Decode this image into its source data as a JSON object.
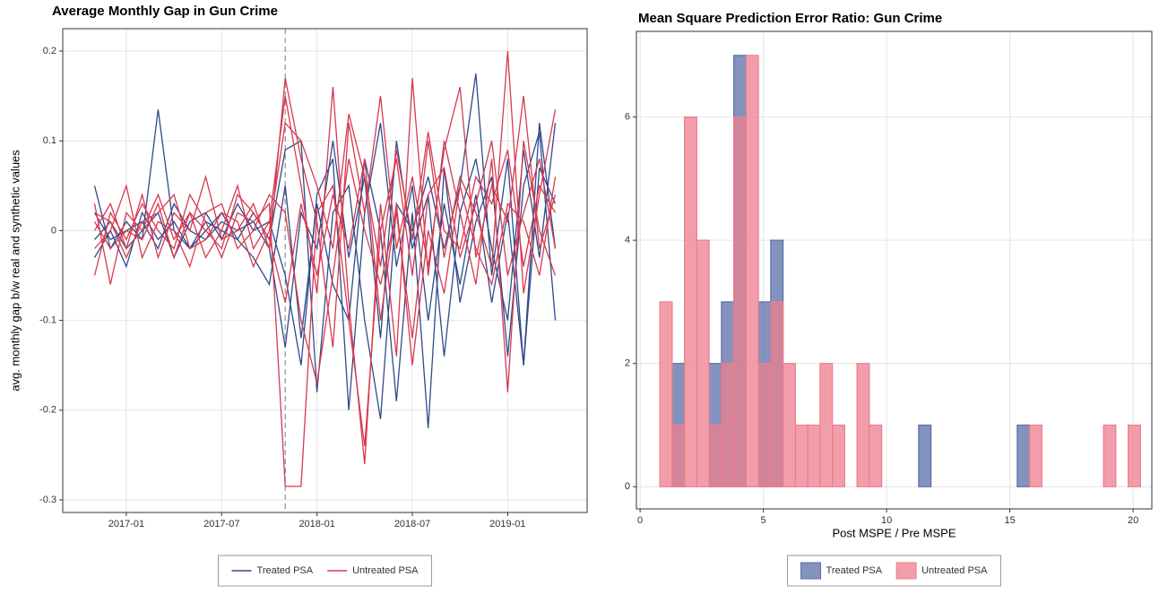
{
  "chart_data": [
    {
      "type": "line",
      "title": "Average Monthly Gap in Gun Crime",
      "y_label": "avg. monthly gap b/w real and synthetic values",
      "x": [
        "2016-11",
        "2016-12",
        "2017-01",
        "2017-02",
        "2017-03",
        "2017-04",
        "2017-05",
        "2017-06",
        "2017-07",
        "2017-08",
        "2017-09",
        "2017-10",
        "2017-11",
        "2017-12",
        "2018-01",
        "2018-02",
        "2018-03",
        "2018-04",
        "2018-05",
        "2018-06",
        "2018-07",
        "2018-08",
        "2018-09",
        "2018-10",
        "2018-11",
        "2018-12",
        "2019-01",
        "2019-02",
        "2019-03",
        "2019-04"
      ],
      "xlim": [
        "2016-09",
        "2019-06"
      ],
      "xticks": [
        "2017-01",
        "2017-07",
        "2018-01",
        "2018-07",
        "2019-01"
      ],
      "ylim": [
        -0.314,
        0.225
      ],
      "yticks": [
        -0.3,
        -0.2,
        -0.1,
        0.0,
        0.1,
        0.2
      ],
      "vline": "2017-11",
      "grid": true,
      "legend": "bottom",
      "series": [
        {
          "name": "Treated PSA",
          "color": "#2f4a8c",
          "values": [
            0.05,
            -0.02,
            0.01,
            -0.01,
            0.135,
            0.0,
            -0.02,
            0.01,
            0.0,
            -0.01,
            0.02,
            -0.01,
            0.09,
            0.1,
            -0.18,
            0.02,
            0.05,
            -0.1,
            -0.21,
            0.03,
            0.0,
            0.06,
            -0.02,
            0.05,
            0.175,
            -0.05,
            0.08,
            -0.15,
            0.12,
            -0.02
          ]
        },
        {
          "name": "Treated PSA",
          "color": "#2f4a8c",
          "values": [
            -0.03,
            0.0,
            -0.04,
            0.02,
            -0.01,
            0.01,
            -0.02,
            0.0,
            0.02,
            -0.01,
            -0.03,
            -0.06,
            0.05,
            -0.12,
            0.03,
            -0.06,
            -0.1,
            0.08,
            0.0,
            -0.19,
            0.02,
            -0.22,
            0.07,
            -0.08,
            0.01,
            0.06,
            -0.14,
            0.05,
            0.11,
            -0.1
          ]
        },
        {
          "name": "Treated PSA",
          "color": "#2f4a8c",
          "values": [
            0.02,
            -0.01,
            0.0,
            0.01,
            -0.02,
            0.03,
            0.0,
            -0.01,
            0.01,
            0.0,
            0.01,
            -0.02,
            -0.13,
            0.02,
            -0.02,
            0.1,
            -0.03,
            0.06,
            -0.12,
            0.1,
            -0.02,
            0.04,
            -0.14,
            0.02,
            0.08,
            -0.02,
            -0.1,
            0.09,
            -0.03,
            0.12
          ]
        },
        {
          "name": "Treated PSA",
          "color": "#2f4a8c",
          "values": [
            -0.01,
            0.01,
            -0.02,
            0.0,
            0.02,
            -0.03,
            0.01,
            0.02,
            -0.01,
            0.03,
            0.0,
            0.01,
            -0.05,
            -0.15,
            0.04,
            0.08,
            -0.2,
            0.02,
            0.12,
            -0.04,
            0.05,
            -0.1,
            0.03,
            -0.06,
            0.04,
            -0.08,
            0.02,
            -0.15,
            0.07,
            0.03
          ]
        },
        {
          "name": "Untreated PSA",
          "color": "#d7394f",
          "values": [
            -0.05,
            0.02,
            -0.01,
            0.03,
            0.0,
            -0.02,
            0.04,
            0.01,
            -0.03,
            0.02,
            0.01,
            0.03,
            -0.285,
            -0.285,
            0.02,
            0.05,
            -0.1,
            -0.24,
            0.0,
            0.08,
            -0.05,
            0.1,
            -0.03,
            0.06,
            0.02,
            -0.04,
            0.2,
            -0.07,
            0.04,
            0.135
          ]
        },
        {
          "name": "Untreated PSA",
          "color": "#d7394f",
          "values": [
            0.03,
            -0.06,
            0.02,
            0.0,
            0.04,
            -0.01,
            0.02,
            -0.03,
            0.0,
            0.05,
            -0.02,
            0.01,
            0.15,
            0.05,
            -0.07,
            0.16,
            -0.08,
            -0.26,
            0.03,
            -0.14,
            0.17,
            -0.05,
            0.1,
            0.02,
            -0.06,
            0.08,
            -0.18,
            0.1,
            0.0,
            -0.05
          ]
        },
        {
          "name": "Untreated PSA",
          "color": "#d7394f",
          "values": [
            0.0,
            0.03,
            -0.02,
            0.04,
            -0.03,
            0.02,
            0.0,
            0.06,
            -0.01,
            0.0,
            0.03,
            -0.02,
            0.17,
            0.08,
            0.01,
            -0.13,
            0.12,
            0.02,
            0.15,
            -0.02,
            0.06,
            -0.04,
            0.09,
            0.16,
            -0.03,
            0.05,
            0.01,
            0.15,
            -0.02,
            0.04
          ]
        },
        {
          "name": "Untreated PSA",
          "color": "#d7394f",
          "values": [
            -0.02,
            0.0,
            0.05,
            -0.03,
            0.01,
            0.0,
            -0.04,
            0.02,
            0.03,
            -0.02,
            0.0,
            0.04,
            0.02,
            -0.1,
            -0.17,
            -0.05,
            0.08,
            0.0,
            -0.06,
            0.02,
            -0.12,
            0.04,
            0.07,
            -0.03,
            0.03,
            0.1,
            -0.05,
            0.02,
            0.08,
            -0.02
          ]
        },
        {
          "name": "Untreated PSA",
          "color": "#d7394f",
          "values": [
            0.02,
            0.01,
            -0.03,
            0.01,
            0.02,
            0.04,
            -0.02,
            -0.01,
            0.02,
            0.01,
            -0.04,
            0.0,
            0.12,
            0.1,
            0.05,
            -0.02,
            0.13,
            0.06,
            -0.04,
            0.09,
            -0.01,
            0.11,
            0.0,
            -0.02,
            0.06,
            0.03,
            0.09,
            -0.04,
            0.05,
            0.02
          ]
        },
        {
          "name": "Untreated PSA",
          "color": "#d7394f",
          "values": [
            0.01,
            -0.02,
            0.0,
            -0.01,
            0.03,
            -0.03,
            0.02,
            0.0,
            -0.02,
            0.04,
            0.02,
            -0.01,
            -0.08,
            0.03,
            -0.05,
            0.04,
            -0.02,
            0.08,
            -0.1,
            0.03,
            -0.15,
            0.0,
            -0.07,
            0.05,
            -0.02,
            -0.06,
            0.03,
            0.01,
            -0.05,
            0.06
          ]
        }
      ]
    },
    {
      "type": "histogram",
      "title": "Mean Square Prediction Error Ratio: Gun Crime",
      "x_label": "Post MSPE / Pre MSPE",
      "bins": [
        0.8,
        1.3,
        1.8,
        2.3,
        2.8,
        3.3,
        3.8,
        4.3,
        4.8,
        5.3,
        5.8,
        6.3,
        6.8,
        7.3,
        7.8,
        8.3,
        8.8,
        9.3,
        9.8,
        10.3,
        10.8,
        11.3,
        11.8,
        12.3,
        12.8,
        13.3,
        13.8,
        14.3,
        14.8,
        15.3,
        15.8,
        16.3,
        16.8,
        17.3,
        17.8,
        18.3,
        18.8,
        19.3,
        19.8,
        20.3
      ],
      "xlim": [
        -0.15,
        20.76
      ],
      "xticks": [
        0,
        5,
        10,
        15,
        20
      ],
      "ylim": [
        -0.36,
        7.39
      ],
      "yticks": [
        0,
        2,
        4,
        6
      ],
      "grid": true,
      "legend": "bottom",
      "series": [
        {
          "name": "Treated PSA",
          "color": "#5a6fa8",
          "values": [
            0,
            2,
            0,
            0,
            2,
            3,
            7,
            0,
            3,
            4,
            0,
            0,
            0,
            0,
            0,
            0,
            0,
            0,
            0,
            0,
            0,
            1,
            0,
            0,
            0,
            0,
            0,
            0,
            0,
            1,
            0,
            0,
            0,
            0,
            0,
            0,
            0,
            0,
            0
          ]
        },
        {
          "name": "Untreated PSA",
          "color": "#ee7d8e",
          "values": [
            3,
            1,
            6,
            4,
            1,
            2,
            6,
            7,
            2,
            3,
            2,
            1,
            1,
            2,
            1,
            0,
            2,
            1,
            0,
            0,
            0,
            0,
            0,
            0,
            0,
            0,
            0,
            0,
            0,
            0,
            1,
            0,
            0,
            0,
            0,
            0,
            1,
            0,
            1
          ]
        }
      ]
    }
  ]
}
